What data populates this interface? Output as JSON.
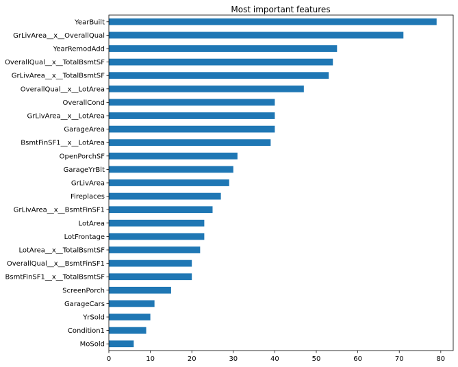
{
  "chart_data": {
    "type": "bar",
    "orientation": "horizontal",
    "title": "Most important features",
    "xlabel": "",
    "ylabel": "",
    "xlim": [
      0,
      83
    ],
    "xticks": [
      0,
      10,
      20,
      30,
      40,
      50,
      60,
      70,
      80
    ],
    "grid": false,
    "bar_color": "#1f77b4",
    "categories": [
      "YearBuilt",
      "GrLivArea__x__OverallQual",
      "YearRemodAdd",
      "OverallQual__x__TotalBsmtSF",
      "GrLivArea__x__TotalBsmtSF",
      "OverallQual__x__LotArea",
      "OverallCond",
      "GrLivArea__x__LotArea",
      "GarageArea",
      "BsmtFinSF1__x__LotArea",
      "OpenPorchSF",
      "GarageYrBlt",
      "GrLivArea",
      "Fireplaces",
      "GrLivArea__x__BsmtFinSF1",
      "LotArea",
      "LotFrontage",
      "LotArea__x__TotalBsmtSF",
      "OverallQual__x__BsmtFinSF1",
      "BsmtFinSF1__x__TotalBsmtSF",
      "ScreenPorch",
      "GarageCars",
      "YrSold",
      "Condition1",
      "MoSold"
    ],
    "values": [
      79,
      71,
      55,
      54,
      53,
      47,
      40,
      40,
      40,
      39,
      31,
      30,
      29,
      27,
      25,
      23,
      23,
      22,
      20,
      20,
      15,
      11,
      10,
      9,
      6
    ]
  }
}
